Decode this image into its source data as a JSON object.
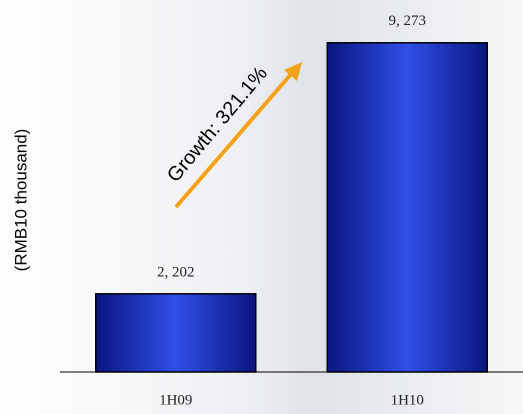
{
  "chart_data": {
    "type": "bar",
    "y_label": "(RMB10 thousand)",
    "annotation": "Growth: 321.1%",
    "categories": [
      "1H09",
      "1H10"
    ],
    "values": [
      2202,
      9273
    ],
    "value_labels": [
      "2, 202",
      "9, 273"
    ],
    "color": "#2f4fe8",
    "ylim": [
      0,
      10000
    ]
  }
}
